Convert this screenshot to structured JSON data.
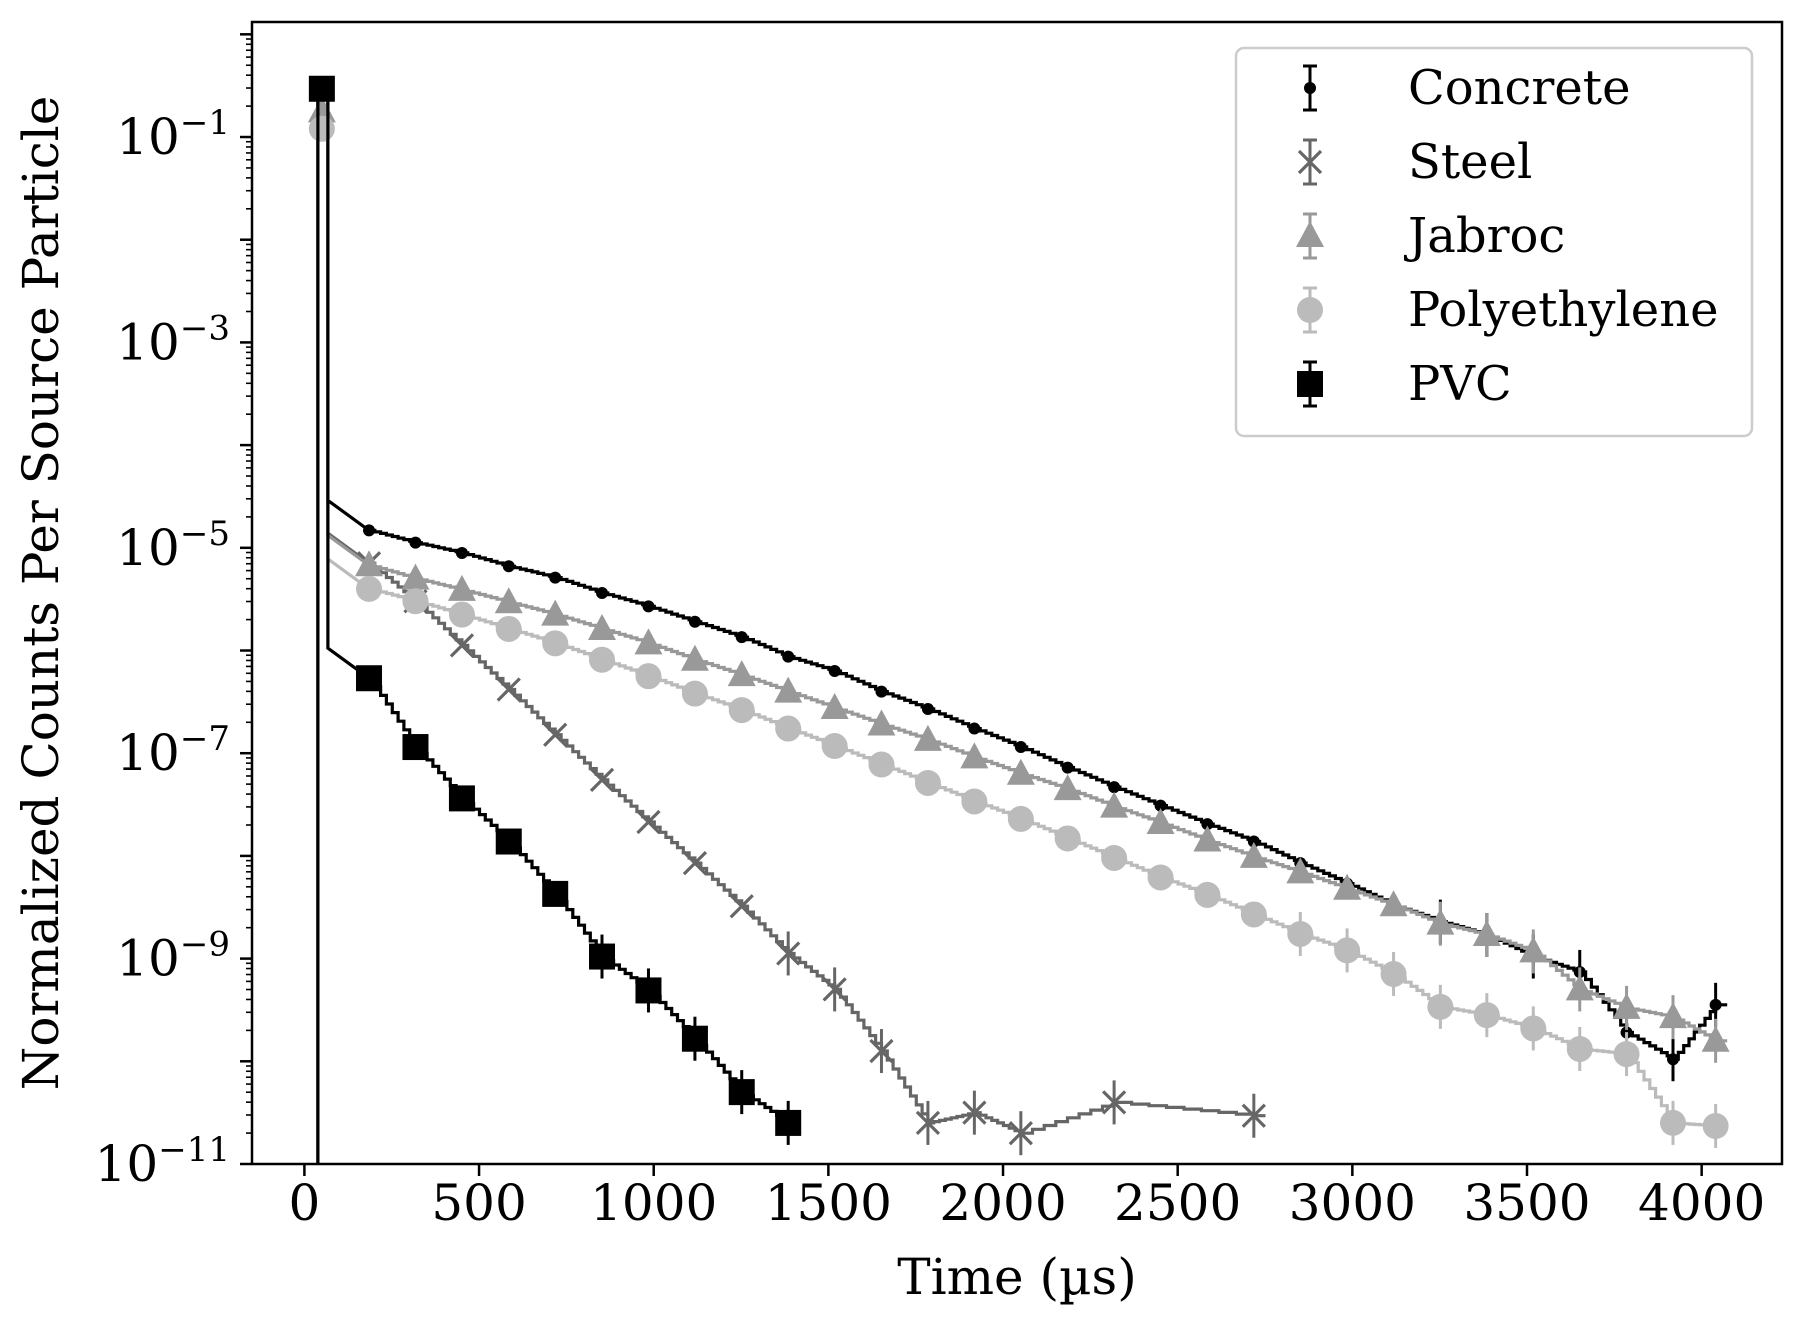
{
  "chart_data": {
    "type": "line",
    "title": "",
    "xlabel": "Time (µs)",
    "ylabel": "Normalized Counts Per Source Particle",
    "yscale": "log",
    "xlim": [
      -150,
      4230
    ],
    "ylim_exp": [
      -11,
      0.12
    ],
    "x_ticks": [
      0,
      500,
      1000,
      1500,
      2000,
      2500,
      3000,
      3500,
      4000
    ],
    "y_tick_exponents": [
      -1,
      -3,
      -5,
      -7,
      -9,
      -11
    ],
    "y_tick_base": "10",
    "legend_position": "top-right",
    "series": [
      {
        "name": "Concrete",
        "color": "#000000",
        "marker": "dot",
        "peak": [
          50,
          -0.6
        ],
        "markers": [
          [
            50,
            -0.6
          ],
          [
            185,
            -4.83
          ],
          [
            318,
            -4.95
          ],
          [
            451,
            -5.05
          ],
          [
            585,
            -5.18
          ],
          [
            718,
            -5.29
          ],
          [
            852,
            -5.44
          ],
          [
            985,
            -5.57
          ],
          [
            1118,
            -5.72
          ],
          [
            1252,
            -5.87
          ],
          [
            1385,
            -6.06
          ],
          [
            1518,
            -6.2
          ],
          [
            1652,
            -6.4
          ],
          [
            1785,
            -6.57
          ],
          [
            1918,
            -6.76
          ],
          [
            2051,
            -6.94
          ],
          [
            2185,
            -7.14
          ],
          [
            2318,
            -7.33
          ],
          [
            2451,
            -7.51
          ],
          [
            2585,
            -7.69
          ],
          [
            2718,
            -7.86
          ],
          [
            2851,
            -8.07
          ],
          [
            2985,
            -8.27
          ],
          [
            3118,
            -8.48
          ],
          [
            3252,
            -8.64
          ],
          [
            3385,
            -8.77
          ],
          [
            3518,
            -8.98
          ],
          [
            3651,
            -9.13
          ],
          [
            3785,
            -9.72
          ],
          [
            3918,
            -9.98
          ],
          [
            4040,
            -9.45
          ]
        ]
      },
      {
        "name": "Steel",
        "color": "#666666",
        "marker": "x",
        "peak": [
          50,
          -0.58
        ],
        "markers": [
          [
            185,
            -5.15
          ],
          [
            318,
            -5.52
          ],
          [
            451,
            -5.95
          ],
          [
            585,
            -6.38
          ],
          [
            718,
            -6.82
          ],
          [
            852,
            -7.26
          ],
          [
            985,
            -7.67
          ],
          [
            1118,
            -8.07
          ],
          [
            1252,
            -8.49
          ],
          [
            1385,
            -8.95
          ],
          [
            1518,
            -9.3
          ],
          [
            1652,
            -9.9
          ],
          [
            1785,
            -10.6
          ],
          [
            1918,
            -10.5
          ],
          [
            2051,
            -10.7
          ],
          [
            2318,
            -10.4
          ],
          [
            2718,
            -10.53
          ]
        ]
      },
      {
        "name": "Jabroc",
        "color": "#999999",
        "marker": "triangle",
        "peak": [
          50,
          -0.75
        ],
        "markers": [
          [
            50,
            -0.75
          ],
          [
            185,
            -5.17
          ],
          [
            318,
            -5.3
          ],
          [
            451,
            -5.41
          ],
          [
            585,
            -5.53
          ],
          [
            718,
            -5.65
          ],
          [
            852,
            -5.79
          ],
          [
            985,
            -5.93
          ],
          [
            1118,
            -6.09
          ],
          [
            1252,
            -6.24
          ],
          [
            1385,
            -6.4
          ],
          [
            1518,
            -6.56
          ],
          [
            1652,
            -6.72
          ],
          [
            1785,
            -6.87
          ],
          [
            1918,
            -7.04
          ],
          [
            2051,
            -7.2
          ],
          [
            2185,
            -7.35
          ],
          [
            2318,
            -7.52
          ],
          [
            2451,
            -7.68
          ],
          [
            2585,
            -7.85
          ],
          [
            2718,
            -8.01
          ],
          [
            2851,
            -8.16
          ],
          [
            2985,
            -8.32
          ],
          [
            3118,
            -8.48
          ],
          [
            3252,
            -8.66
          ],
          [
            3385,
            -8.77
          ],
          [
            3518,
            -8.93
          ],
          [
            3651,
            -9.3
          ],
          [
            3785,
            -9.48
          ],
          [
            3918,
            -9.57
          ],
          [
            4040,
            -9.8
          ]
        ]
      },
      {
        "name": "Polyethylene",
        "color": "#bbbbbb",
        "marker": "circle",
        "peak": [
          50,
          -0.92
        ],
        "markers": [
          [
            50,
            -0.92
          ],
          [
            185,
            -5.4
          ],
          [
            318,
            -5.52
          ],
          [
            451,
            -5.65
          ],
          [
            585,
            -5.79
          ],
          [
            718,
            -5.93
          ],
          [
            852,
            -6.09
          ],
          [
            985,
            -6.25
          ],
          [
            1118,
            -6.42
          ],
          [
            1252,
            -6.58
          ],
          [
            1385,
            -6.76
          ],
          [
            1518,
            -6.93
          ],
          [
            1652,
            -7.11
          ],
          [
            1785,
            -7.29
          ],
          [
            1918,
            -7.47
          ],
          [
            2051,
            -7.64
          ],
          [
            2185,
            -7.83
          ],
          [
            2318,
            -8.02
          ],
          [
            2451,
            -8.21
          ],
          [
            2585,
            -8.38
          ],
          [
            2718,
            -8.57
          ],
          [
            2851,
            -8.76
          ],
          [
            2985,
            -8.92
          ],
          [
            3118,
            -9.15
          ],
          [
            3252,
            -9.47
          ],
          [
            3385,
            -9.55
          ],
          [
            3518,
            -9.68
          ],
          [
            3651,
            -9.88
          ],
          [
            3785,
            -9.93
          ],
          [
            3918,
            -10.6
          ],
          [
            4040,
            -10.63
          ]
        ]
      },
      {
        "name": "PVC",
        "color": "#000000",
        "marker": "square",
        "peak": [
          50,
          -0.53
        ],
        "markers": [
          [
            50,
            -0.53
          ],
          [
            185,
            -6.27
          ],
          [
            318,
            -6.94
          ],
          [
            451,
            -7.44
          ],
          [
            585,
            -7.86
          ],
          [
            718,
            -8.37
          ],
          [
            852,
            -8.98
          ],
          [
            985,
            -9.31
          ],
          [
            1118,
            -9.78
          ],
          [
            1252,
            -10.3
          ],
          [
            1385,
            -10.6
          ]
        ]
      }
    ]
  }
}
